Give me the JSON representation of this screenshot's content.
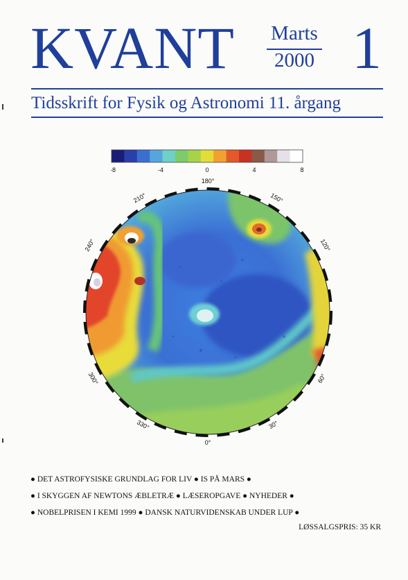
{
  "masthead": {
    "title": "KVANT",
    "month": "Marts",
    "year": "2000",
    "number": "1"
  },
  "subtitle": "Tidsskrift for Fysik og Astronomi  11. årgang",
  "colors": {
    "masthead_blue": "#1f3f9a"
  },
  "scale": {
    "ticks": [
      "-8",
      "-4",
      "0",
      "4",
      "8"
    ],
    "colors": [
      "#1a1d78",
      "#2a3fa8",
      "#3a6fd0",
      "#56a6de",
      "#6fd0c8",
      "#7ccc6a",
      "#a8d24a",
      "#e4dc3a",
      "#f2a030",
      "#e35a2a",
      "#c83222",
      "#8a5a48",
      "#b09898",
      "#e6e0ea",
      "#ffffff"
    ]
  },
  "globe_labels": [
    "180°",
    "150°",
    "120°",
    "60°",
    "30°",
    "0°",
    "330°",
    "300°",
    "240°",
    "210°"
  ],
  "contents": [
    [
      "DET ASTROFYSISKE GRUNDLAG FOR LIV",
      "IS PÅ MARS"
    ],
    [
      "I SKYGGEN AF NEWTONS ÆBLETRÆ",
      "LÆSEROPGAVE",
      "NYHEDER"
    ],
    [
      "NOBELPRISEN I KEMI 1999",
      "DANSK NATURVIDENSKAB UNDER LUP"
    ]
  ],
  "price": "LØSSALGSPRIS: 35 KR"
}
